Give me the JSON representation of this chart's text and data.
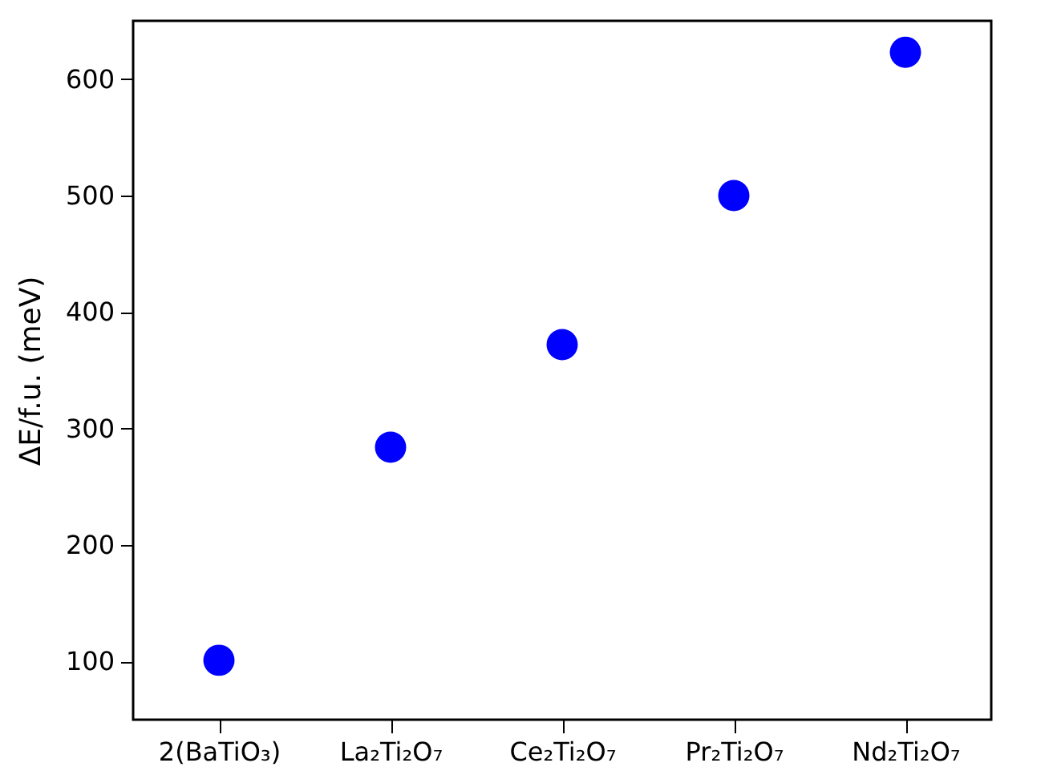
{
  "chart_data": {
    "type": "scatter",
    "ylabel": "ΔE/f.u. (meV)",
    "categories": [
      "2(BaTiO₃)",
      "La₂Ti₂O₇",
      "Ce₂Ti₂O₇",
      "Pr₂Ti₂O₇",
      "Nd₂Ti₂O₇"
    ],
    "series": [
      {
        "color": "#0000ff",
        "values": [
          101,
          284,
          372,
          500,
          623
        ]
      }
    ],
    "ylim": [
      50,
      650
    ],
    "yticks": [
      100,
      200,
      300,
      400,
      500,
      600
    ],
    "grid": false,
    "legend": false,
    "marker": "circle"
  }
}
